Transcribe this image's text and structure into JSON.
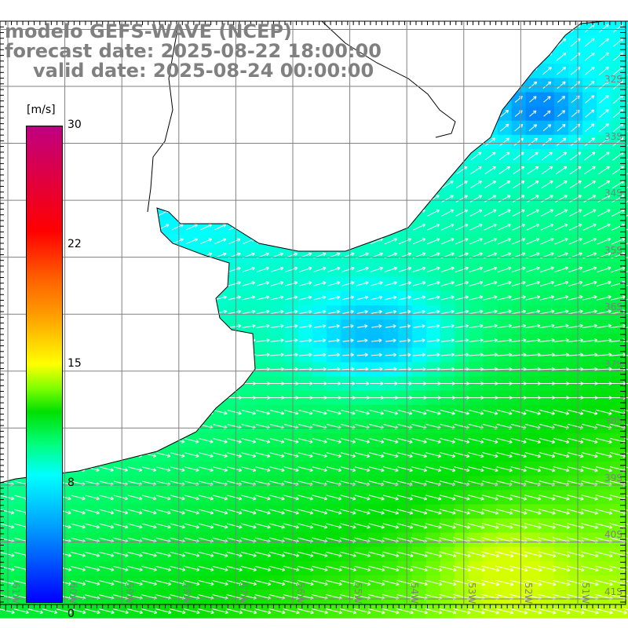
{
  "title": {
    "model": "modelo GEFS-WAVE (NCEP)",
    "forecast": "forecast date: 2025-08-22 18:00:00",
    "valid": "valid date: 2025-08-24 00:00:00"
  },
  "colorbar": {
    "unit": "[m/s]",
    "ticks": [
      "30",
      "22",
      "15",
      "8",
      "0"
    ],
    "colors": {
      "0": "#0000ff",
      "8": "#00ffff",
      "15": "#ffff00",
      "22": "#ff6000",
      "30": "#c00080"
    }
  },
  "lat_labels": [
    "32S",
    "33S",
    "34S",
    "35S",
    "36S",
    "37S",
    "38S",
    "39S",
    "40S",
    "41S"
  ],
  "lon_labels": [
    "61W",
    "60W",
    "59W",
    "58W",
    "57W",
    "56W",
    "55W",
    "54W",
    "53W",
    "52W",
    "51W"
  ]
}
